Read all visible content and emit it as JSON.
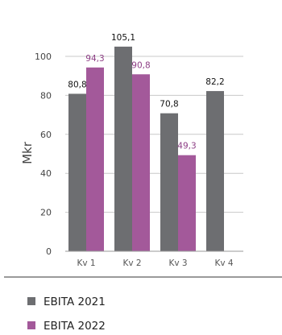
{
  "chart_data": {
    "type": "bar",
    "categories": [
      "Kv 1",
      "Kv 2",
      "Kv 3",
      "Kv 4"
    ],
    "series": [
      {
        "name": "EBITA 2021",
        "values": [
          80.8,
          105.1,
          70.8,
          82.2
        ],
        "labels": [
          "80,8",
          "105,1",
          "70,8",
          "82,2"
        ],
        "color": "#6d6e71",
        "label_color": "#111111"
      },
      {
        "name": "EBITA 2022",
        "values": [
          94.3,
          90.8,
          49.3,
          null
        ],
        "labels": [
          "94,3",
          "90,8",
          "49,3",
          null
        ],
        "color": "#a3599a",
        "label_color": "#8e3f86"
      }
    ],
    "ylabel": "Mkr",
    "ylim": [
      0,
      100
    ],
    "yticks": [
      0,
      20,
      40,
      60,
      80,
      100
    ],
    "grid": true,
    "legend_position": "bottom-left"
  }
}
